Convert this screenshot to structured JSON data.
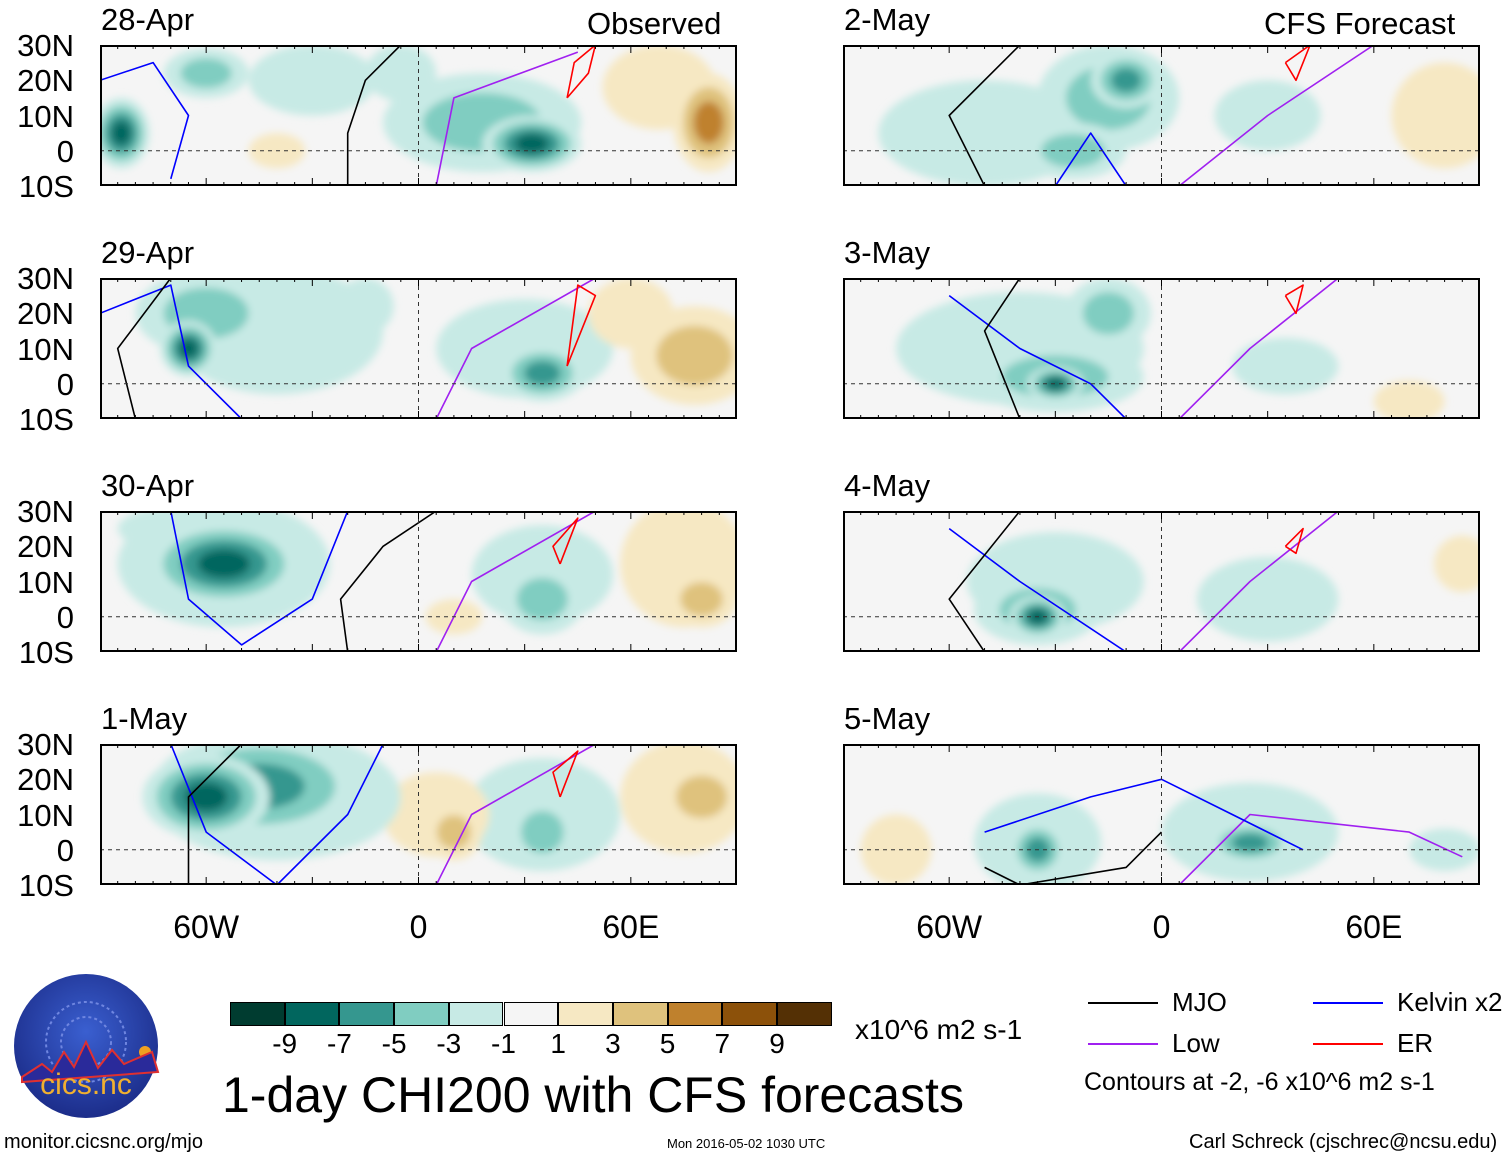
{
  "figure_title": "1-day CHI200 with CFS forecasts",
  "observed_label": "Observed",
  "forecast_label": "CFS Forecast",
  "lat_labels": [
    "30N",
    "20N",
    "10N",
    "0",
    "10S"
  ],
  "lon_labels": [
    "60W",
    "0",
    "60E"
  ],
  "colorbar": {
    "units": "x10^6 m2 s-1",
    "tick_labels": [
      "-9",
      "-7",
      "-5",
      "-3",
      "-1",
      "1",
      "3",
      "5",
      "7",
      "9"
    ],
    "colors": [
      "#003c30",
      "#01665e",
      "#35978f",
      "#80cdc1",
      "#c7eae5",
      "#f5f5f5",
      "#f6e8c3",
      "#dfc27d",
      "#bf812d",
      "#8c510a",
      "#543005"
    ]
  },
  "legend": {
    "items": [
      {
        "label": "MJO",
        "color": "#000000"
      },
      {
        "label": "Kelvin x2",
        "color": "#0000ff"
      },
      {
        "label": "Low",
        "color": "#a020f0"
      },
      {
        "label": "ER",
        "color": "#ff0000"
      }
    ],
    "contours_note": "Contours at -2, -6 x10^6 m2 s-1"
  },
  "footer": {
    "url": "monitor.cicsnc.org/mjo",
    "timestamp": "Mon 2016-05-02 1030 UTC",
    "author": "Carl Schreck (cjschrec@ncsu.edu)"
  },
  "logo": {
    "text": "cics.nc",
    "ring_text": "Cooperative Institute for Climate and Satellites"
  },
  "map_extent": {
    "lon": [
      -90,
      90
    ],
    "lat": [
      -10,
      30
    ]
  },
  "panels": [
    {
      "date": "28-Apr",
      "blobs": [
        [
          -84,
          5,
          -9,
          8,
          10
        ],
        [
          -60,
          22,
          -5,
          12,
          7
        ],
        [
          -30,
          20,
          -3,
          18,
          10
        ],
        [
          -5,
          22,
          -3,
          10,
          8
        ],
        [
          32,
          2,
          -9,
          14,
          8
        ],
        [
          18,
          8,
          -5,
          28,
          14
        ],
        [
          82,
          8,
          7,
          10,
          14
        ],
        [
          68,
          18,
          3,
          16,
          12
        ],
        [
          -40,
          0,
          3,
          8,
          5
        ]
      ],
      "mjo": [
        [
          -20,
          -10
        ],
        [
          -20,
          5
        ],
        [
          -15,
          20
        ],
        [
          -5,
          30
        ]
      ],
      "kelvin": [
        [
          -90,
          20
        ],
        [
          -75,
          25
        ],
        [
          -65,
          10
        ],
        [
          -70,
          -8
        ]
      ],
      "low": [
        [
          5,
          -10
        ],
        [
          10,
          15
        ],
        [
          45,
          28
        ]
      ],
      "er": [
        [
          42,
          15
        ],
        [
          48,
          22
        ],
        [
          50,
          30
        ],
        [
          44,
          25
        ],
        [
          42,
          15
        ]
      ]
    },
    {
      "date": "29-Apr",
      "blobs": [
        [
          -65,
          10,
          -9,
          8,
          8
        ],
        [
          -60,
          20,
          -5,
          20,
          12
        ],
        [
          -40,
          15,
          -3,
          30,
          18
        ],
        [
          -15,
          22,
          -3,
          8,
          8
        ],
        [
          35,
          3,
          -7,
          12,
          8
        ],
        [
          30,
          10,
          -3,
          25,
          14
        ],
        [
          78,
          8,
          5,
          18,
          14
        ],
        [
          60,
          20,
          3,
          12,
          10
        ],
        [
          -5,
          0,
          1,
          15,
          5
        ]
      ],
      "mjo": [
        [
          -80,
          -10
        ],
        [
          -85,
          10
        ],
        [
          -70,
          30
        ]
      ],
      "kelvin": [
        [
          -90,
          20
        ],
        [
          -70,
          28
        ],
        [
          -65,
          5
        ],
        [
          -50,
          -10
        ]
      ],
      "low": [
        [
          5,
          -10
        ],
        [
          15,
          10
        ],
        [
          50,
          30
        ]
      ],
      "er": [
        [
          42,
          5
        ],
        [
          50,
          25
        ],
        [
          45,
          28
        ],
        [
          42,
          5
        ]
      ]
    },
    {
      "date": "30-Apr",
      "blobs": [
        [
          -55,
          15,
          -9,
          22,
          12
        ],
        [
          -55,
          15,
          -5,
          30,
          18
        ],
        [
          -70,
          25,
          -3,
          15,
          6
        ],
        [
          35,
          5,
          -5,
          12,
          10
        ],
        [
          35,
          12,
          -3,
          20,
          14
        ],
        [
          -5,
          5,
          1,
          18,
          10
        ],
        [
          80,
          5,
          5,
          10,
          8
        ],
        [
          75,
          15,
          3,
          18,
          18
        ],
        [
          10,
          0,
          3,
          8,
          5
        ]
      ],
      "mjo": [
        [
          -20,
          -10
        ],
        [
          -22,
          5
        ],
        [
          -10,
          20
        ],
        [
          5,
          30
        ]
      ],
      "kelvin": [
        [
          -70,
          30
        ],
        [
          -65,
          5
        ],
        [
          -50,
          -8
        ],
        [
          -30,
          5
        ],
        [
          -20,
          30
        ]
      ],
      "low": [
        [
          5,
          -10
        ],
        [
          15,
          10
        ],
        [
          50,
          30
        ]
      ],
      "er": [
        [
          40,
          15
        ],
        [
          45,
          28
        ],
        [
          38,
          20
        ],
        [
          40,
          15
        ]
      ]
    },
    {
      "date": "1-May",
      "blobs": [
        [
          -60,
          15,
          -9,
          18,
          12
        ],
        [
          -45,
          18,
          -7,
          30,
          15
        ],
        [
          -40,
          15,
          -5,
          35,
          18
        ],
        [
          35,
          5,
          -5,
          10,
          10
        ],
        [
          35,
          10,
          -3,
          22,
          16
        ],
        [
          10,
          5,
          5,
          8,
          8
        ],
        [
          5,
          10,
          3,
          15,
          12
        ],
        [
          80,
          15,
          5,
          12,
          10
        ],
        [
          75,
          15,
          3,
          18,
          16
        ]
      ],
      "mjo": [
        [
          -65,
          -10
        ],
        [
          -65,
          15
        ],
        [
          -50,
          30
        ]
      ],
      "kelvin": [
        [
          -70,
          30
        ],
        [
          -60,
          5
        ],
        [
          -40,
          -10
        ],
        [
          -20,
          10
        ],
        [
          -10,
          30
        ]
      ],
      "low": [
        [
          5,
          -10
        ],
        [
          15,
          10
        ],
        [
          50,
          30
        ]
      ],
      "er": [
        [
          40,
          15
        ],
        [
          45,
          28
        ],
        [
          38,
          22
        ],
        [
          40,
          15
        ]
      ]
    },
    {
      "date": "2-May",
      "blobs": [
        [
          -10,
          20,
          -7,
          10,
          8
        ],
        [
          -15,
          15,
          -5,
          20,
          15
        ],
        [
          -25,
          0,
          -5,
          15,
          8
        ],
        [
          -50,
          5,
          -3,
          30,
          15
        ],
        [
          30,
          10,
          -3,
          15,
          10
        ],
        [
          80,
          10,
          3,
          15,
          15
        ],
        [
          20,
          0,
          1,
          10,
          6
        ]
      ],
      "mjo": [
        [
          -50,
          -10
        ],
        [
          -60,
          10
        ],
        [
          -40,
          30
        ]
      ],
      "kelvin": [
        [
          -30,
          -10
        ],
        [
          -20,
          5
        ],
        [
          -10,
          -10
        ]
      ],
      "low": [
        [
          5,
          -10
        ],
        [
          30,
          10
        ],
        [
          60,
          30
        ]
      ],
      "er": [
        [
          35,
          25
        ],
        [
          42,
          30
        ],
        [
          38,
          20
        ],
        [
          35,
          25
        ]
      ]
    },
    {
      "date": "3-May",
      "blobs": [
        [
          -30,
          0,
          -9,
          8,
          5
        ],
        [
          -30,
          2,
          -5,
          25,
          10
        ],
        [
          -15,
          20,
          -5,
          12,
          10
        ],
        [
          -40,
          10,
          -3,
          35,
          16
        ],
        [
          35,
          5,
          -3,
          15,
          8
        ],
        [
          70,
          -5,
          3,
          10,
          6
        ],
        [
          50,
          25,
          1,
          10,
          6
        ]
      ],
      "mjo": [
        [
          -40,
          -10
        ],
        [
          -50,
          15
        ],
        [
          -40,
          30
        ]
      ],
      "kelvin": [
        [
          -60,
          25
        ],
        [
          -40,
          10
        ],
        [
          -20,
          0
        ],
        [
          -10,
          -10
        ]
      ],
      "low": [
        [
          5,
          -10
        ],
        [
          25,
          10
        ],
        [
          50,
          30
        ]
      ],
      "er": [
        [
          35,
          25
        ],
        [
          40,
          28
        ],
        [
          38,
          20
        ],
        [
          35,
          25
        ]
      ]
    },
    {
      "date": "4-May",
      "blobs": [
        [
          -35,
          0,
          -9,
          8,
          6
        ],
        [
          -35,
          2,
          -5,
          18,
          10
        ],
        [
          -30,
          10,
          -3,
          25,
          14
        ],
        [
          30,
          5,
          -3,
          20,
          12
        ],
        [
          -40,
          30,
          1,
          10,
          4
        ],
        [
          85,
          15,
          3,
          8,
          8
        ]
      ],
      "mjo": [
        [
          -50,
          -10
        ],
        [
          -60,
          5
        ],
        [
          -40,
          30
        ]
      ],
      "kelvin": [
        [
          -60,
          25
        ],
        [
          -40,
          10
        ],
        [
          -10,
          -10
        ]
      ],
      "low": [
        [
          5,
          -10
        ],
        [
          25,
          10
        ],
        [
          50,
          30
        ]
      ],
      "er": [
        [
          35,
          20
        ],
        [
          40,
          25
        ],
        [
          38,
          18
        ],
        [
          35,
          20
        ]
      ]
    },
    {
      "date": "5-May",
      "blobs": [
        [
          -35,
          0,
          -7,
          8,
          8
        ],
        [
          -35,
          2,
          -3,
          18,
          14
        ],
        [
          25,
          2,
          -7,
          12,
          6
        ],
        [
          25,
          5,
          -3,
          25,
          14
        ],
        [
          80,
          0,
          -3,
          10,
          6
        ],
        [
          -75,
          0,
          3,
          10,
          10
        ],
        [
          -40,
          25,
          1,
          15,
          6
        ],
        [
          -10,
          25,
          1,
          10,
          6
        ]
      ],
      "mjo": [
        [
          -50,
          -5
        ],
        [
          -40,
          -10
        ],
        [
          -10,
          -5
        ],
        [
          0,
          5
        ]
      ],
      "kelvin": [
        [
          -50,
          5
        ],
        [
          -20,
          15
        ],
        [
          0,
          20
        ],
        [
          20,
          10
        ],
        [
          40,
          0
        ]
      ],
      "low": [
        [
          5,
          -10
        ],
        [
          25,
          10
        ],
        [
          70,
          5
        ],
        [
          85,
          -2
        ]
      ],
      "er": []
    }
  ]
}
